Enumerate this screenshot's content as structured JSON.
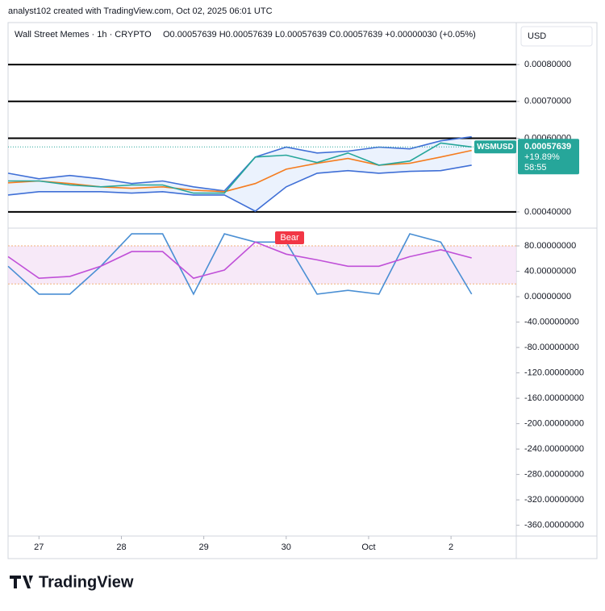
{
  "header": {
    "credit": "analyst102 created with TradingView.com, Oct 02, 2025 06:01 UTC",
    "symbol": "Wall Street Memes · 1h · CRYPTO",
    "ohlc": "O0.00057639 H0.00057639 L0.00057639 C0.00057639 +0.00000030 (+0.05%)",
    "currency": "USD"
  },
  "footer": {
    "brand": "TradingView"
  },
  "chart_data": [
    {
      "type": "line",
      "x": [
        -9,
        0,
        9,
        18,
        27,
        36,
        45,
        54,
        63,
        72,
        81,
        90,
        99,
        108,
        117,
        126
      ],
      "xlim": [
        -9,
        139
      ],
      "xticks": [
        {
          "value": 0,
          "label": "27"
        },
        {
          "value": 24,
          "label": "28"
        },
        {
          "value": 48,
          "label": "29"
        },
        {
          "value": 72,
          "label": "30"
        },
        {
          "value": 96,
          "label": "Oct"
        },
        {
          "value": 120,
          "label": "2"
        }
      ],
      "ylim": [
        0.000356,
        0.000914
      ],
      "yticks": [
        {
          "value": 0.0004,
          "label": "0.00040000"
        },
        {
          "value": 0.0006,
          "label": "0.00060000"
        },
        {
          "value": 0.0007,
          "label": "0.00070000"
        },
        {
          "value": 0.0008,
          "label": "0.00080000"
        }
      ],
      "hlines": [
        0.0008,
        0.0007,
        0.0006,
        0.0004
      ],
      "series": [
        {
          "color": "#3f6fd6",
          "values": [
            0.000505,
            0.00049,
            0.000499,
            0.00049,
            0.000477,
            0.000484,
            0.000468,
            0.000457,
            0.000549,
            0.000576,
            0.00056,
            0.000565,
            0.000576,
            0.000571,
            0.000593,
            0.000604
          ]
        },
        {
          "color": "#f57c1f",
          "values": [
            0.000479,
            0.000484,
            0.000477,
            0.000468,
            0.000464,
            0.000468,
            0.000459,
            0.000455,
            0.000477,
            0.000516,
            0.000532,
            0.000545,
            0.000527,
            0.000532,
            0.000549,
            0.000567
          ]
        },
        {
          "color": "#3f6fd6",
          "values": [
            0.000446,
            0.000455,
            0.000455,
            0.000455,
            0.000451,
            0.000455,
            0.000446,
            0.000446,
            0.000402,
            0.000468,
            0.000505,
            0.000512,
            0.000505,
            0.00051,
            0.000512,
            0.000527
          ]
        },
        {
          "color": "#26a69a",
          "values": [
            0.000484,
            0.000484,
            0.000473,
            0.000468,
            0.000473,
            0.000473,
            0.000451,
            0.000451,
            0.000549,
            0.000554,
            0.000534,
            0.00056,
            0.000527,
            0.000538,
            0.000587,
            0.00057639
          ]
        }
      ],
      "last_price": {
        "symbol": "WSMUSD",
        "value": 0.00057639,
        "change": "+19.89%",
        "countdown": "58:55",
        "color": "#26a69a"
      }
    },
    {
      "type": "line",
      "x": [
        -9,
        0,
        9,
        18,
        27,
        36,
        45,
        54,
        63,
        72,
        81,
        90,
        99,
        108,
        117,
        126
      ],
      "xlim": [
        -9,
        139
      ],
      "ylim": [
        -377,
        108
      ],
      "yticks": [
        {
          "value": 80,
          "label": "80.00000000"
        },
        {
          "value": 40,
          "label": "40.00000000"
        },
        {
          "value": 0,
          "label": "0.00000000"
        },
        {
          "value": -40,
          "label": "-40.00000000"
        },
        {
          "value": -80,
          "label": "-80.00000000"
        },
        {
          "value": -120,
          "label": "-120.00000000"
        },
        {
          "value": -160,
          "label": "-160.00000000"
        },
        {
          "value": -200,
          "label": "-200.00000000"
        },
        {
          "value": -240,
          "label": "-240.00000000"
        },
        {
          "value": -280,
          "label": "-280.00000000"
        },
        {
          "value": -320,
          "label": "-320.00000000"
        },
        {
          "value": -360,
          "label": "-360.00000000"
        }
      ],
      "band": [
        20,
        80
      ],
      "annotation": "Bear",
      "series": [
        {
          "color": "#4a8fd4",
          "values": [
            48,
            4,
            4,
            48,
            99,
            99,
            4,
            99,
            86,
            86,
            4,
            10,
            4,
            99,
            86,
            4
          ]
        },
        {
          "color": "#c050d8",
          "values": [
            63,
            29,
            32,
            48,
            71,
            71,
            29,
            42,
            86,
            67,
            58,
            48,
            48,
            63,
            74,
            61
          ]
        }
      ]
    }
  ]
}
